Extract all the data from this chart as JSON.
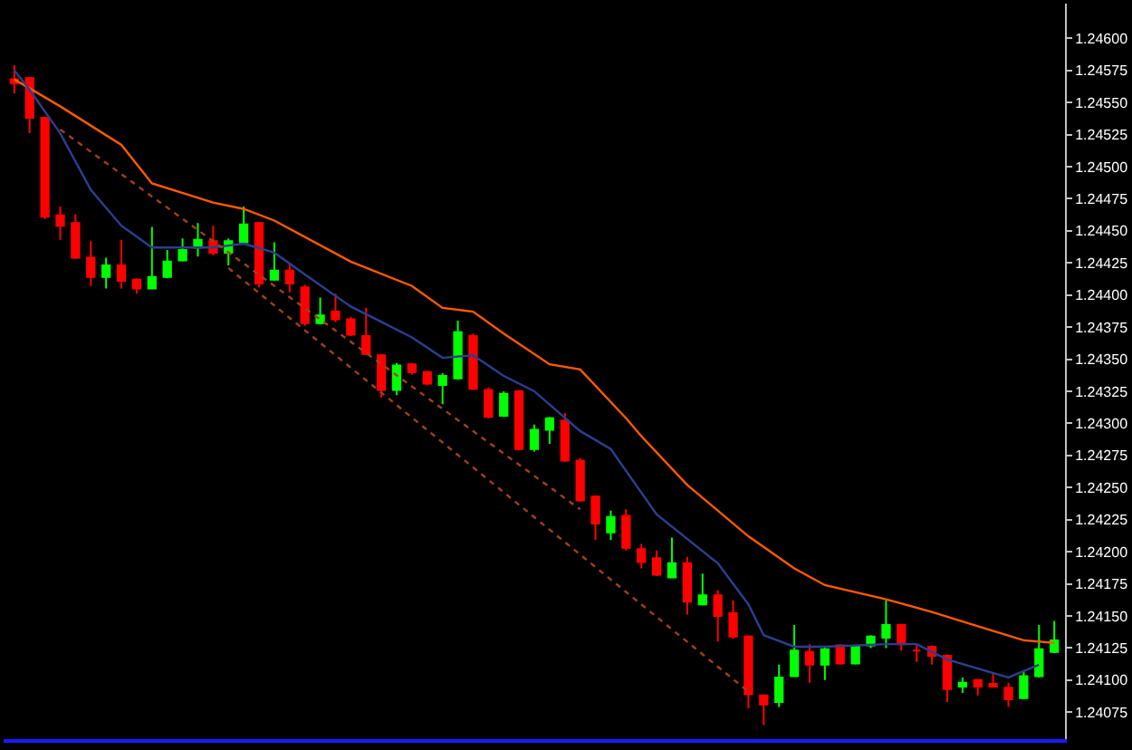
{
  "chart_data": {
    "type": "candlestick",
    "categories": [
      null,
      null,
      null,
      null,
      null,
      null,
      null,
      null,
      null,
      null,
      null,
      null,
      null,
      null,
      null,
      null,
      null,
      null,
      null,
      null,
      null,
      null,
      null,
      null,
      null,
      null,
      null,
      null,
      null,
      null,
      null,
      null,
      null,
      null,
      null,
      null,
      null,
      null,
      null,
      null,
      null,
      null,
      null,
      null,
      null,
      null,
      null,
      null,
      null,
      null,
      null,
      null,
      null,
      null,
      null,
      null,
      null,
      null,
      null,
      null,
      null,
      null,
      null,
      null,
      null,
      null,
      null,
      null,
      null
    ],
    "ohlc": [
      [
        1.24568,
        1.24579,
        1.24557,
        1.24565
      ],
      [
        1.24569,
        1.2457,
        1.24526,
        1.24538
      ],
      [
        1.24538,
        1.24539,
        1.24459,
        1.24461
      ],
      [
        1.24462,
        1.24469,
        1.24443,
        1.24454
      ],
      [
        1.24456,
        1.24463,
        1.24428,
        1.24429
      ],
      [
        1.24429,
        1.24442,
        1.24407,
        1.24414
      ],
      [
        1.24414,
        1.24429,
        1.24405,
        1.24423
      ],
      [
        1.24423,
        1.24443,
        1.24405,
        1.24411
      ],
      [
        1.24412,
        1.24413,
        1.24401,
        1.24405
      ],
      [
        1.24405,
        1.24453,
        1.24405,
        1.24414
      ],
      [
        1.24414,
        1.24435,
        1.24413,
        1.24426
      ],
      [
        1.24427,
        1.24444,
        1.24426,
        1.24435
      ],
      [
        1.24437,
        1.24456,
        1.2443,
        1.24443
      ],
      [
        1.24442,
        1.24454,
        1.24431,
        1.24433
      ],
      [
        1.24433,
        1.24444,
        1.24423,
        1.24442
      ],
      [
        1.24441,
        1.24469,
        1.2444,
        1.24455
      ],
      [
        1.24456,
        1.24457,
        1.24406,
        1.24409
      ],
      [
        1.24412,
        1.24441,
        1.24411,
        1.24419
      ],
      [
        1.24419,
        1.24425,
        1.24402,
        1.24409
      ],
      [
        1.24406,
        1.24408,
        1.24376,
        1.24378
      ],
      [
        1.24378,
        1.24398,
        1.24377,
        1.24384
      ],
      [
        1.24387,
        1.24401,
        1.24379,
        1.24381
      ],
      [
        1.24381,
        1.24383,
        1.24368,
        1.24369
      ],
      [
        1.24368,
        1.2439,
        1.24353,
        1.24354
      ],
      [
        1.24353,
        1.24354,
        1.2432,
        1.24326
      ],
      [
        1.24326,
        1.24347,
        1.24322,
        1.24345
      ],
      [
        1.24346,
        1.24347,
        1.24338,
        1.2434
      ],
      [
        1.2434,
        1.24341,
        1.2433,
        1.24331
      ],
      [
        1.2433,
        1.24339,
        1.24315,
        1.24337
      ],
      [
        1.24335,
        1.2438,
        1.24334,
        1.24371
      ],
      [
        1.24368,
        1.2437,
        1.24326,
        1.24327
      ],
      [
        1.24326,
        1.24328,
        1.24304,
        1.24305
      ],
      [
        1.24306,
        1.24325,
        1.24305,
        1.24323
      ],
      [
        1.24325,
        1.24326,
        1.24279,
        1.2428
      ],
      [
        1.2428,
        1.24299,
        1.24278,
        1.24295
      ],
      [
        1.24295,
        1.24305,
        1.24284,
        1.24304
      ],
      [
        1.24302,
        1.24308,
        1.2427,
        1.24271
      ],
      [
        1.24271,
        1.24273,
        1.24239,
        1.2424
      ],
      [
        1.24243,
        1.24244,
        1.24209,
        1.24222
      ],
      [
        1.24215,
        1.24232,
        1.24209,
        1.24227
      ],
      [
        1.24228,
        1.24233,
        1.24201,
        1.24203
      ],
      [
        1.24202,
        1.24206,
        1.24187,
        1.24192
      ],
      [
        1.24195,
        1.24201,
        1.24181,
        1.24182
      ],
      [
        1.2418,
        1.24211,
        1.2418,
        1.24191
      ],
      [
        1.24191,
        1.24196,
        1.24151,
        1.24161
      ],
      [
        1.24159,
        1.24183,
        1.24158,
        1.24166
      ],
      [
        1.24166,
        1.2417,
        1.2413,
        1.2415
      ],
      [
        1.24152,
        1.24162,
        1.24132,
        1.24134
      ],
      [
        1.24134,
        1.24135,
        1.24078,
        1.24089
      ],
      [
        1.24088,
        1.24089,
        1.24065,
        1.24081
      ],
      [
        1.24083,
        1.24112,
        1.24079,
        1.24102
      ],
      [
        1.24103,
        1.24143,
        1.24103,
        1.24123
      ],
      [
        1.24122,
        1.24128,
        1.24098,
        1.24112
      ],
      [
        1.24112,
        1.24126,
        1.241,
        1.24124
      ],
      [
        1.24127,
        1.24128,
        1.24112,
        1.24113
      ],
      [
        1.24113,
        1.24127,
        1.24112,
        1.24126
      ],
      [
        1.24127,
        1.24135,
        1.24125,
        1.24134
      ],
      [
        1.24133,
        1.24162,
        1.24125,
        1.24143
      ],
      [
        1.24143,
        1.24144,
        1.24123,
        1.24128
      ],
      [
        1.24123,
        1.24128,
        1.24114,
        1.24123
      ],
      [
        1.24126,
        1.24127,
        1.24112,
        1.24119
      ],
      [
        1.24119,
        1.2412,
        1.24083,
        1.24093
      ],
      [
        1.24095,
        1.24102,
        1.2409,
        1.24098
      ],
      [
        1.241,
        1.24101,
        1.24088,
        1.24095
      ],
      [
        1.24097,
        1.24106,
        1.24094,
        1.24095
      ],
      [
        1.24094,
        1.24098,
        1.24079,
        1.24085
      ],
      [
        1.24086,
        1.24107,
        1.24085,
        1.24103
      ],
      [
        1.24103,
        1.24143,
        1.24102,
        1.24124
      ],
      [
        1.24122,
        1.24146,
        1.24121,
        1.24131
      ]
    ],
    "series": [
      {
        "type": "line",
        "color": "#ff5a00",
        "values": [
          1.24568,
          null,
          null,
          1.24547,
          null,
          null,
          null,
          1.24517,
          null,
          1.24487,
          null,
          null,
          null,
          1.24472,
          null,
          1.24467,
          null,
          1.24458,
          null,
          null,
          null,
          null,
          1.24426,
          null,
          null,
          null,
          1.24407,
          null,
          1.2439,
          null,
          1.24387,
          null,
          1.2437,
          null,
          null,
          1.24346,
          null,
          1.24342,
          null,
          null,
          1.24304,
          1.2429,
          null,
          null,
          1.24252,
          null,
          null,
          null,
          1.24212,
          null,
          null,
          1.24187,
          null,
          1.24174,
          null,
          null,
          null,
          1.24163,
          null,
          null,
          1.24153,
          null,
          null,
          1.24142,
          null,
          null,
          1.24131,
          null,
          1.24129
        ]
      },
      {
        "type": "line",
        "color": "#2a3f8f",
        "values": [
          1.24575,
          1.2456,
          null,
          1.24526,
          null,
          1.24482,
          null,
          1.24454,
          null,
          1.24437,
          null,
          null,
          null,
          1.24437,
          null,
          1.2444,
          null,
          1.24433,
          null,
          1.24416,
          null,
          null,
          1.24391,
          null,
          1.24379,
          null,
          1.24367,
          null,
          1.24351,
          null,
          1.24353,
          null,
          1.24337,
          null,
          1.24325,
          null,
          null,
          1.24294,
          null,
          1.2428,
          null,
          null,
          1.24229,
          null,
          null,
          null,
          1.24191,
          null,
          1.24159,
          1.24135,
          null,
          1.24126,
          null,
          1.24126,
          null,
          null,
          null,
          1.24128,
          null,
          1.24128,
          null,
          1.24116,
          null,
          null,
          null,
          1.24102,
          null,
          1.24112,
          null
        ]
      },
      {
        "type": "line",
        "color": "#a0401a",
        "line_style": "dotted",
        "values": [
          null,
          null,
          null,
          1.24529,
          null,
          null,
          null,
          null,
          null,
          null,
          null,
          null,
          null,
          null,
          null,
          null,
          null,
          null,
          null,
          null,
          null,
          null,
          null,
          null,
          null,
          null,
          null,
          null,
          null,
          null,
          null,
          null,
          null,
          null,
          null,
          null,
          null,
          1.24233,
          null,
          null,
          null,
          null,
          null,
          null,
          null,
          null,
          null,
          null,
          null,
          null,
          null,
          null,
          null,
          null,
          null,
          null,
          null,
          null,
          null,
          null,
          null,
          null,
          null,
          null,
          null,
          null,
          null,
          null,
          null
        ]
      },
      {
        "type": "line",
        "color": "#a0401a",
        "line_style": "dotted",
        "values": [
          null,
          null,
          null,
          null,
          null,
          null,
          null,
          null,
          null,
          null,
          null,
          null,
          null,
          null,
          1.24421,
          null,
          null,
          null,
          null,
          null,
          null,
          null,
          null,
          null,
          null,
          null,
          null,
          null,
          null,
          null,
          null,
          null,
          null,
          null,
          null,
          null,
          null,
          null,
          null,
          null,
          null,
          null,
          null,
          null,
          null,
          null,
          null,
          null,
          1.24091,
          null,
          null,
          null,
          null,
          null,
          null,
          null,
          null,
          null,
          null,
          null,
          null,
          null,
          null,
          null,
          null,
          null,
          null,
          null,
          null
        ]
      }
    ],
    "ylim": [
      1.24054,
      1.24627
    ],
    "yticks": [
      {
        "value": 1.24075,
        "label": "1.24075"
      },
      {
        "value": 1.241,
        "label": "1.24100"
      },
      {
        "value": 1.24125,
        "label": "1.24125"
      },
      {
        "value": 1.2415,
        "label": "1.24150"
      },
      {
        "value": 1.24175,
        "label": "1.24175"
      },
      {
        "value": 1.242,
        "label": "1.24200"
      },
      {
        "value": 1.24225,
        "label": "1.24225"
      },
      {
        "value": 1.2425,
        "label": "1.24250"
      },
      {
        "value": 1.24275,
        "label": "1.24275"
      },
      {
        "value": 1.243,
        "label": "1.24300"
      },
      {
        "value": 1.24325,
        "label": "1.24325"
      },
      {
        "value": 1.2435,
        "label": "1.24350"
      },
      {
        "value": 1.24375,
        "label": "1.24375"
      },
      {
        "value": 1.244,
        "label": "1.24400"
      },
      {
        "value": 1.24425,
        "label": "1.24425"
      },
      {
        "value": 1.2445,
        "label": "1.24450"
      },
      {
        "value": 1.24475,
        "label": "1.24475"
      },
      {
        "value": 1.245,
        "label": "1.24500"
      },
      {
        "value": 1.24525,
        "label": "1.24525"
      },
      {
        "value": 1.2455,
        "label": "1.24550"
      },
      {
        "value": 1.24575,
        "label": "1.24575"
      },
      {
        "value": 1.246,
        "label": "1.24600"
      }
    ],
    "tick_labels": "y"
  }
}
